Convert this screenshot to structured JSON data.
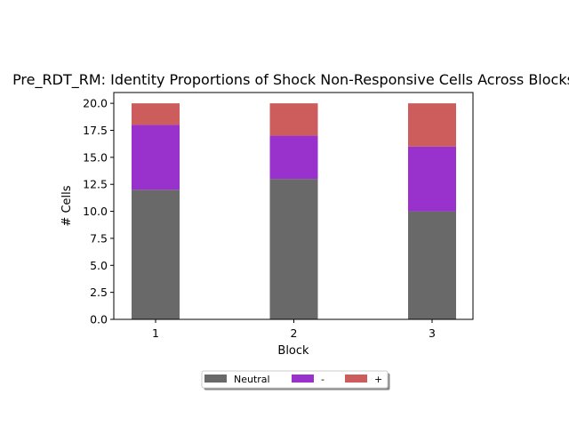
{
  "chart_data": {
    "type": "bar",
    "stacked": true,
    "title": "Pre_RDT_RM: Identity Proportions of Shock Non-Responsive Cells Across Blocks",
    "xlabel": "Block",
    "ylabel": "# Cells",
    "categories": [
      "1",
      "2",
      "3"
    ],
    "ylim": [
      0,
      21
    ],
    "yticks": [
      "0.0",
      "2.5",
      "5.0",
      "7.5",
      "10.0",
      "12.5",
      "15.0",
      "17.5",
      "20.0"
    ],
    "grid": false,
    "legend_position": "bottom-center",
    "series": [
      {
        "name": "Neutral",
        "values": [
          12,
          13,
          10
        ],
        "color": "#696969"
      },
      {
        "name": "-",
        "values": [
          6,
          4,
          6
        ],
        "color": "#9932cc"
      },
      {
        "name": "+",
        "values": [
          2,
          3,
          4
        ],
        "color": "#cd5c5c"
      }
    ]
  }
}
